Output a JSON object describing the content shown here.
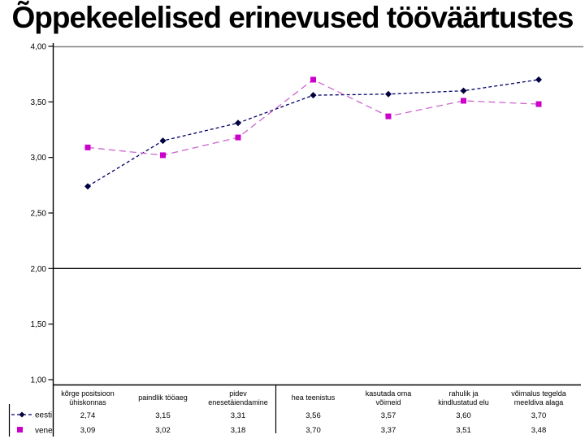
{
  "title": "Õppekeelelised erinevused tööväärtustes",
  "chart_data": {
    "type": "line",
    "title": "Õppekeelelised erinevused tööväärtustes",
    "categories": [
      "kõrge positsioon ühiskonnas",
      "paindlik tööaeg",
      "pidev enesetäiendamine",
      "hea teenistus",
      "kasutada oma võimeid",
      "rahulik ja kindlustatud elu",
      "võimalus tegelda meeldiva alaga"
    ],
    "category_lines": [
      [
        "kõrge positsioon",
        "ühiskonnas"
      ],
      [
        "paindlik tööaeg"
      ],
      [
        "pidev",
        "enesetäiendamine"
      ],
      [
        "hea teenistus"
      ],
      [
        "kasutada oma",
        "võimeid"
      ],
      [
        "rahulik ja",
        "kindlustatud elu"
      ],
      [
        "võimalus tegelda",
        "meeldiva alaga"
      ]
    ],
    "series": [
      {
        "name": "eesti",
        "values": [
          2.74,
          3.15,
          3.31,
          3.56,
          3.57,
          3.6,
          3.7
        ],
        "display": [
          "2,74",
          "3,15",
          "3,31",
          "3,56",
          "3,57",
          "3,60",
          "3,70"
        ],
        "line_color": "#000066",
        "marker_color": "#000040",
        "marker": "diamond",
        "dash": "4,3"
      },
      {
        "name": "vene",
        "values": [
          3.09,
          3.02,
          3.18,
          3.7,
          3.37,
          3.51,
          3.48
        ],
        "display": [
          "3,09",
          "3,02",
          "3,18",
          "3,70",
          "3,37",
          "3,51",
          "3,48"
        ],
        "line_color": "#CC66CC",
        "marker_color": "#CC00CC",
        "marker": "square",
        "dash": "8,5"
      }
    ],
    "ylim": [
      1.0,
      4.0
    ],
    "yticks": {
      "values": [
        4.0,
        3.5,
        3.0,
        2.5,
        2.0,
        1.5,
        1.0
      ],
      "labels": [
        "4,00",
        "3,50",
        "3,00",
        "2,50",
        "2,00",
        "1,50",
        "1,00"
      ]
    },
    "extra_gridline_at": 2.0,
    "grid": "single line at 2,00 plus gray top border",
    "legend_position": "bottom-left",
    "data_table_shown": true
  },
  "legend": {
    "items": [
      {
        "label": "eesti"
      },
      {
        "label": "vene"
      }
    ]
  },
  "colors": {
    "background": "#FFFFFF",
    "axis": "#000000",
    "top_border": "#808080",
    "eesti": "#000066",
    "vene": "#CC00CC"
  }
}
